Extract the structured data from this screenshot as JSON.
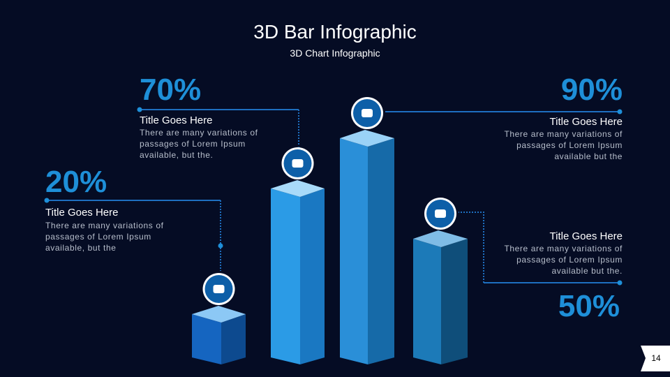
{
  "chart_data": {
    "type": "bar3d",
    "title": "3D Bar Infographic",
    "subtitle": "3D Chart Infographic",
    "values": [
      20,
      70,
      90,
      50
    ],
    "value_labels": [
      "20%",
      "70%",
      "90%",
      "50%"
    ],
    "item_titles": [
      "Title Goes Here",
      "Title Goes Here",
      "Title Goes Here",
      "Title Goes Here"
    ],
    "item_texts": [
      "There are many variations of passages of Lorem Ipsum available, but the",
      "There are many variations of passages  of Lorem Ipsum available, but the.",
      "There are many variations of passages of Lorem Ipsum available but the",
      "There are many variations of passages of Lorem Ipsum available but the."
    ]
  },
  "page_number": "14"
}
